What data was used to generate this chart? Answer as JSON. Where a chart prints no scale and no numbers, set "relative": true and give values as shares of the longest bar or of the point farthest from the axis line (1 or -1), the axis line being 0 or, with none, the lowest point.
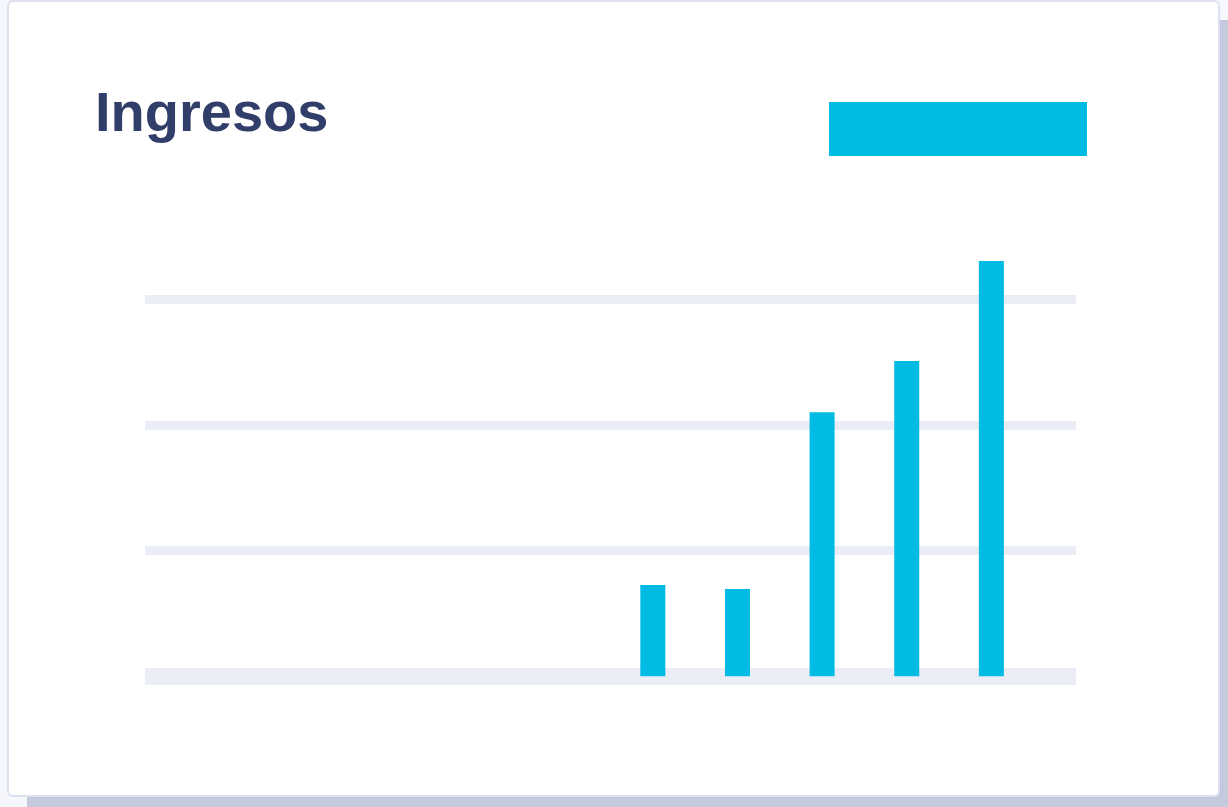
{
  "chart_data": {
    "type": "bar",
    "title": "Ingresos",
    "categories": [
      null,
      null,
      null,
      null,
      null
    ],
    "values": [
      0.22,
      0.21,
      0.636,
      0.759,
      1
    ],
    "color": "#00bbe4",
    "relative": true,
    "grid": "y"
  }
}
